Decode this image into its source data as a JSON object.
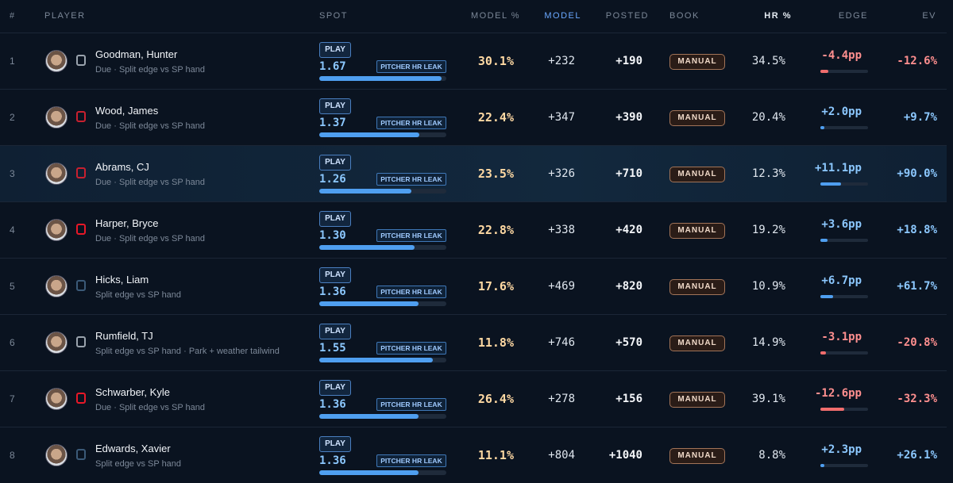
{
  "header": {
    "columns": [
      "#",
      "PLAYER",
      "SPOT",
      "MODEL %",
      "MODEL",
      "POSTED",
      "BOOK",
      "HR %",
      "EDGE",
      "EV"
    ]
  },
  "rows": [
    {
      "rank": "1",
      "name": "Goodman, Hunter",
      "note": "Due · Split edge vs SP hand",
      "logo_color": "#9aa3ad",
      "badge": "PLAY",
      "spot": "1.67",
      "tag": "PITCHER HR LEAK",
      "model_pct": "30.1%",
      "model": "+232",
      "posted": "+190",
      "book": "MANUAL",
      "hr_pct": "34.5%",
      "edge": "-4.4pp",
      "ev": "-12.6%"
    },
    {
      "rank": "2",
      "name": "Wood, James",
      "note": "Due · Split edge vs SP hand",
      "logo_color": "#c8202f",
      "badge": "PLAY",
      "spot": "1.37",
      "tag": "PITCHER HR LEAK",
      "model_pct": "22.4%",
      "model": "+347",
      "posted": "+390",
      "book": "MANUAL",
      "hr_pct": "20.4%",
      "edge": "+2.0pp",
      "ev": "+9.7%"
    },
    {
      "rank": "3",
      "name": "Abrams, CJ",
      "note": "Due · Split edge vs SP hand",
      "logo_color": "#c8202f",
      "badge": "PLAY",
      "spot": "1.26",
      "tag": "PITCHER HR LEAK",
      "model_pct": "23.5%",
      "model": "+326",
      "posted": "+710",
      "book": "MANUAL",
      "hr_pct": "12.3%",
      "edge": "+11.1pp",
      "ev": "+90.0%"
    },
    {
      "rank": "4",
      "name": "Harper, Bryce",
      "note": "Due · Split edge vs SP hand",
      "logo_color": "#e81828",
      "badge": "PLAY",
      "spot": "1.30",
      "tag": "PITCHER HR LEAK",
      "model_pct": "22.8%",
      "model": "+338",
      "posted": "+420",
      "book": "MANUAL",
      "hr_pct": "19.2%",
      "edge": "+3.6pp",
      "ev": "+18.8%"
    },
    {
      "rank": "5",
      "name": "Hicks, Liam",
      "note": "Split edge vs SP hand",
      "logo_color": "#3b5a78",
      "badge": "PLAY",
      "spot": "1.36",
      "tag": "PITCHER HR LEAK",
      "model_pct": "17.6%",
      "model": "+469",
      "posted": "+820",
      "book": "MANUAL",
      "hr_pct": "10.9%",
      "edge": "+6.7pp",
      "ev": "+61.7%"
    },
    {
      "rank": "6",
      "name": "Rumfield, TJ",
      "note": "Split edge vs SP hand · Park + weather tailwind",
      "logo_color": "#9aa3ad",
      "badge": "PLAY",
      "spot": "1.55",
      "tag": "PITCHER HR LEAK",
      "model_pct": "11.8%",
      "model": "+746",
      "posted": "+570",
      "book": "MANUAL",
      "hr_pct": "14.9%",
      "edge": "-3.1pp",
      "ev": "-20.8%"
    },
    {
      "rank": "7",
      "name": "Schwarber, Kyle",
      "note": "Due · Split edge vs SP hand",
      "logo_color": "#e81828",
      "badge": "PLAY",
      "spot": "1.36",
      "tag": "PITCHER HR LEAK",
      "model_pct": "26.4%",
      "model": "+278",
      "posted": "+156",
      "book": "MANUAL",
      "hr_pct": "39.1%",
      "edge": "-12.6pp",
      "ev": "-32.3%"
    },
    {
      "rank": "8",
      "name": "Edwards, Xavier",
      "note": "Split edge vs SP hand",
      "logo_color": "#3b5a78",
      "badge": "PLAY",
      "spot": "1.36",
      "tag": "PITCHER HR LEAK",
      "model_pct": "11.1%",
      "model": "+804",
      "posted": "+1040",
      "book": "MANUAL",
      "hr_pct": "8.8%",
      "edge": "+2.3pp",
      "ev": "+26.1%"
    }
  ]
}
